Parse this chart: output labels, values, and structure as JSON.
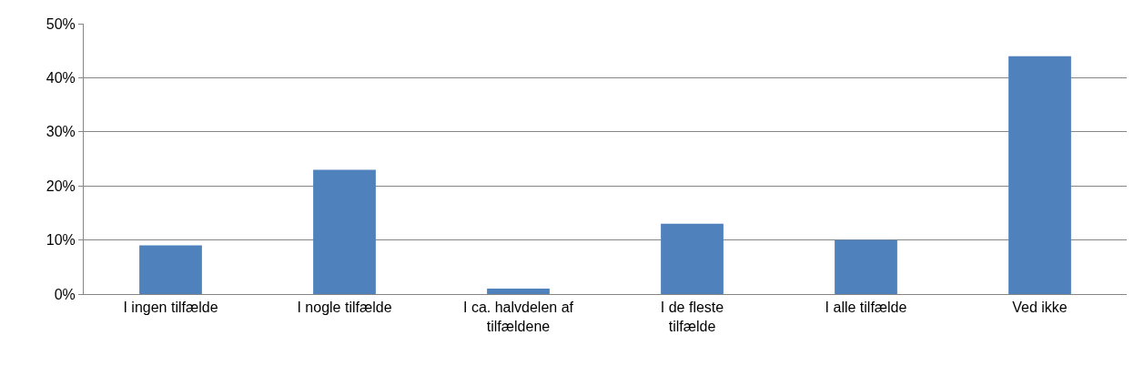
{
  "chart_data": {
    "type": "bar",
    "categories": [
      "I ingen tilfælde",
      "I nogle tilfælde",
      "I ca. halvdelen af tilfældene",
      "I de fleste tilfælde",
      "I alle tilfælde",
      "Ved ikke"
    ],
    "values": [
      9,
      23,
      1,
      13,
      10,
      44
    ],
    "color": "#4f81bd",
    "ylim": [
      0,
      50
    ],
    "yticks": [
      {
        "value": 0,
        "label": "0%"
      },
      {
        "value": 10,
        "label": "10%"
      },
      {
        "value": 20,
        "label": "20%"
      },
      {
        "value": 30,
        "label": "30%"
      },
      {
        "value": 40,
        "label": "40%"
      },
      {
        "value": 50,
        "label": "50%"
      }
    ],
    "grid": "y",
    "legend": false
  }
}
